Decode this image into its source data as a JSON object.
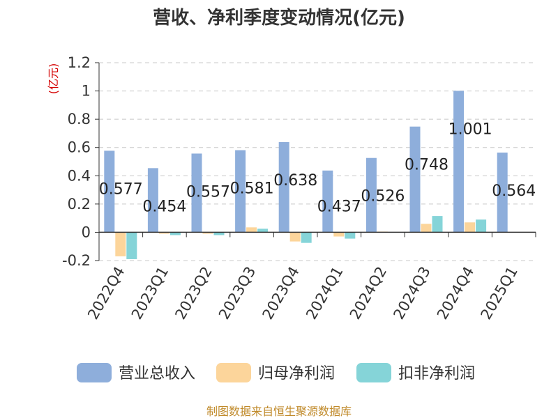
{
  "title": "营收、净利季度变动情况(亿元)",
  "unit_label": "(亿元)",
  "source": "制图数据来自恒生聚源数据库",
  "colors": {
    "revenue": "#8eaedb",
    "net_profit": "#fcd59b",
    "deducted_net_profit": "#85d4d8",
    "grid": "#c8c8c8",
    "axis": "#333333"
  },
  "chart_data": {
    "type": "bar",
    "title": "营收、净利季度变动情况(亿元)",
    "ylabel": "(亿元)",
    "xlabel": "",
    "ylim": [
      -0.2,
      1.2
    ],
    "yticks": [
      -0.2,
      0,
      0.2,
      0.4,
      0.6,
      0.8,
      1,
      1.2
    ],
    "ytick_labels": [
      "-0.2",
      "0",
      "0.2",
      "0.4",
      "0.6",
      "0.8",
      "1",
      "1.2"
    ],
    "grid": true,
    "legend_position": "bottom",
    "categories": [
      "2022Q4",
      "2023Q1",
      "2023Q2",
      "2023Q3",
      "2023Q4",
      "2024Q1",
      "2024Q2",
      "2024Q3",
      "2024Q4",
      "2025Q1"
    ],
    "series": [
      {
        "name": "营业总收入",
        "values": [
          0.577,
          0.454,
          0.557,
          0.581,
          0.638,
          0.437,
          0.526,
          0.748,
          1.001,
          0.564
        ]
      },
      {
        "name": "归母净利润",
        "values": [
          -0.17,
          -0.01,
          -0.01,
          0.035,
          -0.065,
          -0.03,
          0.005,
          0.06,
          0.07,
          0.002
        ]
      },
      {
        "name": "扣非净利润",
        "values": [
          -0.19,
          -0.02,
          -0.02,
          0.025,
          -0.075,
          -0.045,
          0.0,
          0.115,
          0.09,
          0.002
        ]
      }
    ],
    "data_labels": [
      "0.577",
      "0.454",
      "0.557",
      "0.581",
      "0.638",
      "0.437",
      "0.526",
      "0.748",
      "1.001",
      "0.564"
    ]
  }
}
